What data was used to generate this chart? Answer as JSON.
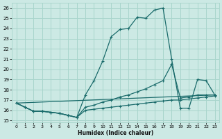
{
  "xlabel": "Humidex (Indice chaleur)",
  "bg_color": "#cce9e4",
  "grid_color": "#a8d5cc",
  "line_color": "#1a6b6b",
  "xlim": [
    -0.5,
    23.5
  ],
  "ylim": [
    14.8,
    26.5
  ],
  "yticks": [
    15,
    16,
    17,
    18,
    19,
    20,
    21,
    22,
    23,
    24,
    25,
    26
  ],
  "xticks": [
    0,
    1,
    2,
    3,
    4,
    5,
    6,
    7,
    8,
    9,
    10,
    11,
    12,
    13,
    14,
    15,
    16,
    17,
    18,
    19,
    20,
    21,
    22,
    23
  ],
  "curve1_x": [
    0,
    1,
    2,
    3,
    4,
    5,
    6,
    7,
    8,
    9,
    10,
    11,
    12,
    13,
    14,
    15,
    16,
    17,
    18,
    19,
    20,
    21,
    22,
    23
  ],
  "curve1_y": [
    16.7,
    16.3,
    15.9,
    15.9,
    15.8,
    15.7,
    15.5,
    15.3,
    17.5,
    18.9,
    20.8,
    23.2,
    23.9,
    24.0,
    25.1,
    25.0,
    25.8,
    26.0,
    21.0,
    16.2,
    16.2,
    19.0,
    18.9,
    17.5
  ],
  "curve2_x": [
    0,
    1,
    2,
    3,
    4,
    5,
    6,
    7,
    8,
    9,
    10,
    11,
    12,
    13,
    14,
    15,
    16,
    17,
    18,
    19,
    20,
    21,
    22,
    23
  ],
  "curve2_y": [
    16.7,
    16.3,
    15.9,
    15.9,
    15.8,
    15.7,
    15.5,
    15.3,
    16.3,
    16.5,
    16.8,
    17.0,
    17.3,
    17.5,
    17.8,
    18.1,
    18.5,
    18.9,
    20.5,
    17.2,
    17.3,
    17.5,
    17.5,
    17.5
  ],
  "curve3_x": [
    0,
    23
  ],
  "curve3_y": [
    16.7,
    17.5
  ],
  "curve4_x": [
    0,
    1,
    2,
    3,
    4,
    5,
    6,
    7,
    8,
    9,
    10,
    11,
    12,
    13,
    14,
    15,
    16,
    17,
    18,
    19,
    20,
    21,
    22,
    23
  ],
  "curve4_y": [
    16.7,
    16.3,
    15.9,
    15.9,
    15.8,
    15.7,
    15.5,
    15.3,
    16.0,
    16.1,
    16.2,
    16.3,
    16.4,
    16.5,
    16.6,
    16.7,
    16.8,
    16.9,
    17.0,
    17.0,
    17.1,
    17.2,
    17.3,
    17.4
  ]
}
